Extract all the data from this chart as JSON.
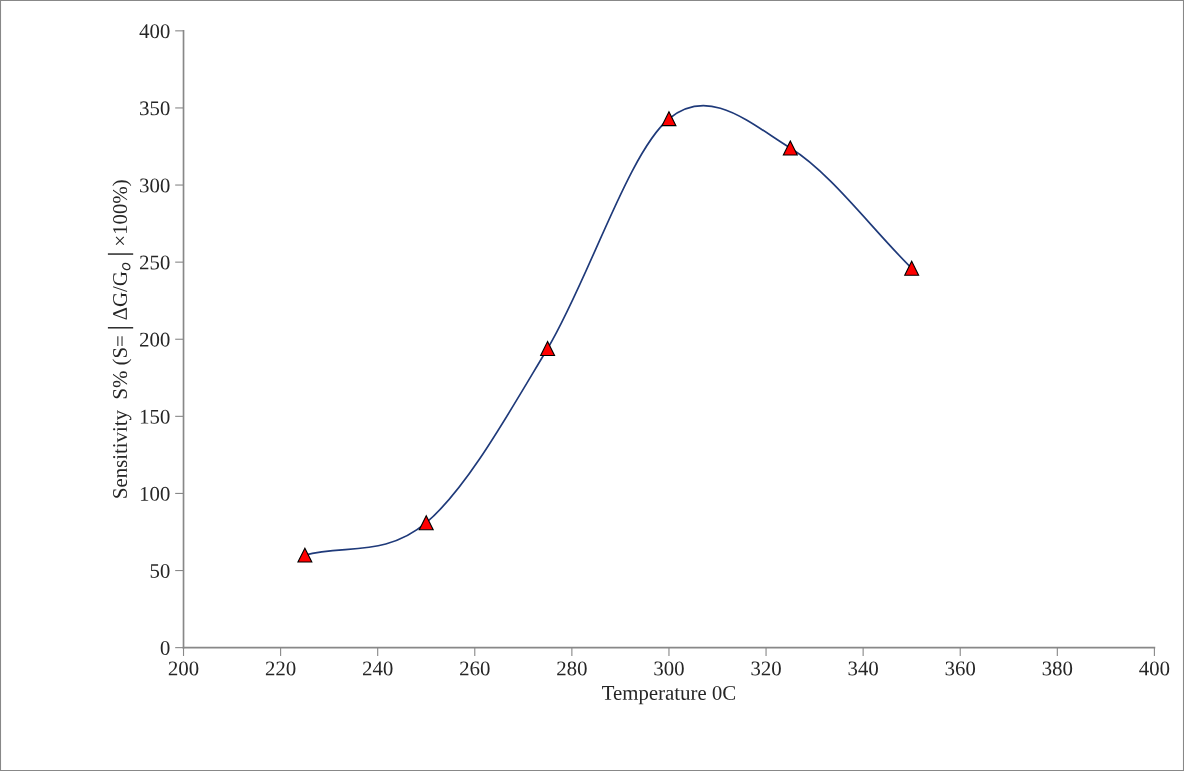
{
  "chart_data": {
    "type": "line",
    "xlabel": "Temperature 0C",
    "ylabel": "Sensitivity  S% (S=│ΔG/G$_{o}$│×100%)",
    "x": [
      225,
      250,
      275,
      300,
      325,
      350
    ],
    "series": [
      {
        "color": "#1f3a7a",
        "values": [
          60,
          81,
          194,
          343,
          324,
          246
        ],
        "marker": "none"
      },
      {
        "type": "scatter",
        "color": "#ff0000",
        "values": [
          60,
          81,
          194,
          343,
          324,
          246
        ]
      }
    ],
    "marker": "triangle",
    "xlim": [
      200,
      400
    ],
    "xticks": [
      200,
      220,
      240,
      260,
      280,
      300,
      320,
      340,
      360,
      380,
      400
    ],
    "ylim": [
      0,
      400
    ],
    "yticks": [
      0,
      50,
      100,
      150,
      200,
      250,
      300,
      350,
      400
    ],
    "grid": false,
    "legend": false
  }
}
